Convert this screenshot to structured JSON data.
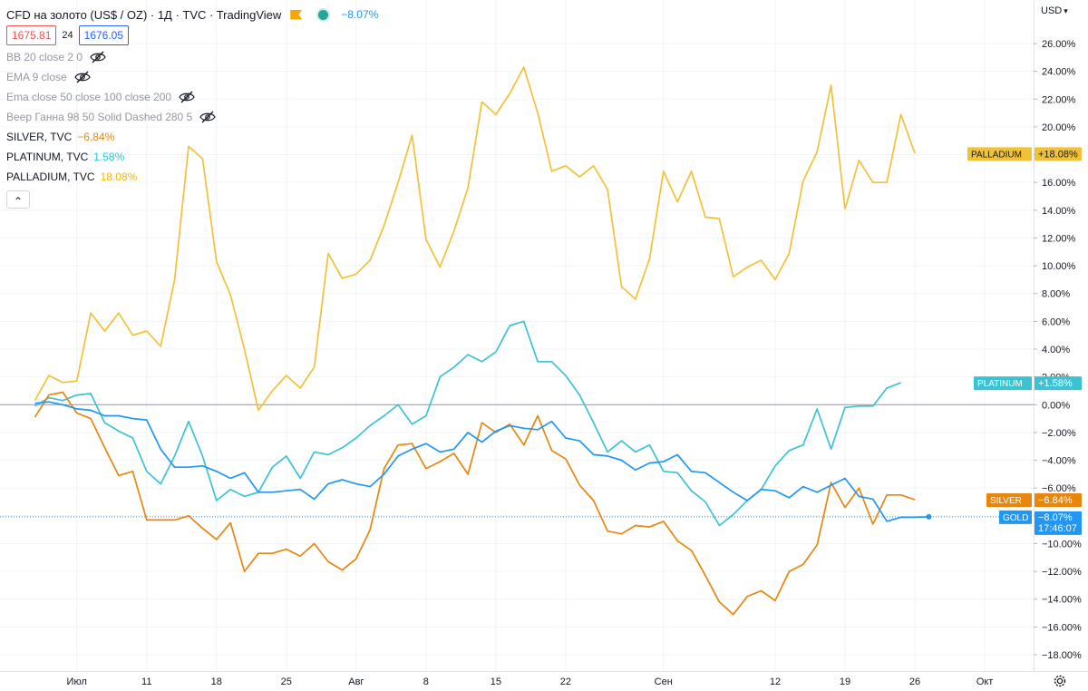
{
  "header": {
    "title": "CFD на золото (US$ / OZ) · 1Д · TVC · TradingView",
    "change": "−8.07%",
    "bid": "1675.81",
    "spread": "24",
    "ask": "1676.05",
    "currency": "USD",
    "currency_caret": "▾",
    "collapse_glyph": "⌃"
  },
  "indicators": [
    {
      "label": "BB 20 close 2 0"
    },
    {
      "label": "EMA 9 close"
    },
    {
      "label": "Ema close 50 close 100 close 200"
    },
    {
      "label": "Веер Ганна 98 50 Solid Dashed 280 5"
    }
  ],
  "series_legend": [
    {
      "name": "SILVER, TVC",
      "value": "−6.84%",
      "color": "#e8860d"
    },
    {
      "name": "PLATINUM, TVC",
      "value": "1.58%",
      "color": "#26c6da"
    },
    {
      "name": "PALLADIUM, TVC",
      "value": "18.08%",
      "color": "#f0b90b"
    }
  ],
  "colors": {
    "gold": "#2196f3",
    "silver": "#e8860d",
    "platinum": "#3bc3d4",
    "palladium": "#f2c236",
    "zero_line": "#9598a1",
    "grid": "#f0f3fa"
  },
  "chart_data": {
    "type": "line",
    "y_unit": "%",
    "ylim": [
      -19,
      27
    ],
    "y_ticks": [
      "26.00%",
      "24.00%",
      "22.00%",
      "20.00%",
      "18.00%",
      "16.00%",
      "14.00%",
      "12.00%",
      "10.00%",
      "8.00%",
      "6.00%",
      "4.00%",
      "2.00%",
      "0.00%",
      "−2.00%",
      "−4.00%",
      "−6.00%",
      "−8.00%",
      "−10.00%",
      "−12.00%",
      "−14.00%",
      "−16.00%",
      "−18.00%"
    ],
    "x_ticks": [
      {
        "label": "Июл",
        "index": 3
      },
      {
        "label": "11",
        "index": 8
      },
      {
        "label": "18",
        "index": 13
      },
      {
        "label": "25",
        "index": 18
      },
      {
        "label": "Авг",
        "index": 23
      },
      {
        "label": "8",
        "index": 28
      },
      {
        "label": "15",
        "index": 33
      },
      {
        "label": "22",
        "index": 38
      },
      {
        "label": "Сен",
        "index": 45
      },
      {
        "label": "12",
        "index": 53
      },
      {
        "label": "19",
        "index": 58
      },
      {
        "label": "26",
        "index": 63
      },
      {
        "label": "Окт",
        "index": 68
      }
    ],
    "x_index_range": [
      -2.5,
      71.5
    ],
    "series": [
      {
        "key": "palladium",
        "label": "PALLADIUM",
        "badge": "+18.08%",
        "values": [
          0.3,
          2.1,
          1.6,
          1.7,
          6.6,
          5.3,
          6.6,
          5.0,
          5.3,
          4.2,
          9.0,
          18.6,
          17.7,
          10.3,
          7.9,
          4.0,
          -0.4,
          1.0,
          2.1,
          1.2,
          2.7,
          10.9,
          9.1,
          9.4,
          10.4,
          12.9,
          16.0,
          19.4,
          11.9,
          9.9,
          12.5,
          15.6,
          21.8,
          20.9,
          22.4,
          24.3,
          21.0,
          16.8,
          17.2,
          16.4,
          17.2,
          15.5,
          8.5,
          7.6,
          10.5,
          16.8,
          14.6,
          16.8,
          13.5,
          13.4,
          9.2,
          9.9,
          10.4,
          9.0,
          10.9,
          16.1,
          18.2,
          23.0,
          14.1,
          17.6,
          16.0,
          16.0,
          20.9,
          18.08
        ]
      },
      {
        "key": "platinum",
        "label": "PLATINUM",
        "badge": "+1.58%",
        "values": [
          -0.1,
          0.5,
          0.3,
          0.7,
          0.8,
          -1.3,
          -1.9,
          -2.4,
          -4.8,
          -5.7,
          -3.7,
          -1.2,
          -3.7,
          -6.9,
          -6.1,
          -6.6,
          -6.3,
          -4.5,
          -3.7,
          -5.3,
          -3.4,
          -3.6,
          -3.1,
          -2.4,
          -1.5,
          -0.8,
          0.0,
          -1.4,
          -0.8,
          2.0,
          2.7,
          3.6,
          3.1,
          3.8,
          5.7,
          6.0,
          3.1,
          3.1,
          2.1,
          0.7,
          -1.3,
          -3.4,
          -2.6,
          -3.4,
          -2.9,
          -4.8,
          -4.9,
          -6.2,
          -7.0,
          -8.7,
          -7.9,
          -6.9,
          -6.1,
          -4.4,
          -3.3,
          -2.9,
          -0.3,
          -3.2,
          -0.2,
          -0.1,
          -0.1,
          1.2,
          1.58
        ]
      },
      {
        "key": "silver",
        "label": "SILVER",
        "badge": "−6.84%",
        "values": [
          -0.9,
          0.7,
          0.9,
          -0.6,
          -1.0,
          -3.1,
          -5.1,
          -4.8,
          -8.3,
          -8.3,
          -8.3,
          -8.0,
          -8.9,
          -9.7,
          -8.5,
          -12.0,
          -10.7,
          -10.7,
          -10.4,
          -10.9,
          -10.0,
          -11.3,
          -11.9,
          -11.1,
          -9.0,
          -4.6,
          -2.9,
          -2.8,
          -4.6,
          -4.1,
          -3.5,
          -5.0,
          -1.3,
          -2.0,
          -1.4,
          -2.9,
          -0.8,
          -3.3,
          -3.9,
          -5.8,
          -6.9,
          -9.1,
          -9.3,
          -8.7,
          -8.8,
          -8.4,
          -9.8,
          -10.5,
          -12.3,
          -14.2,
          -15.1,
          -13.8,
          -13.4,
          -14.1,
          -12.0,
          -11.5,
          -10.1,
          -5.6,
          -7.4,
          -6.0,
          -8.6,
          -6.5,
          -6.5,
          -6.84
        ]
      },
      {
        "key": "gold",
        "label": "GOLD",
        "badge": "−8.07%",
        "time": "17:46:07",
        "values": [
          0.1,
          0.2,
          0.0,
          -0.3,
          -0.4,
          -0.8,
          -0.8,
          -1.0,
          -1.1,
          -3.2,
          -4.5,
          -4.5,
          -4.4,
          -4.8,
          -5.3,
          -4.9,
          -6.3,
          -6.3,
          -6.2,
          -6.1,
          -6.8,
          -5.7,
          -5.4,
          -5.7,
          -5.9,
          -5.0,
          -3.7,
          -3.2,
          -2.8,
          -3.4,
          -3.2,
          -2.0,
          -2.7,
          -1.9,
          -1.5,
          -1.7,
          -1.8,
          -1.2,
          -2.4,
          -2.6,
          -3.6,
          -3.7,
          -4.0,
          -4.7,
          -4.2,
          -4.1,
          -3.6,
          -4.8,
          -4.9,
          -5.6,
          -6.3,
          -6.9,
          -6.1,
          -6.2,
          -6.7,
          -5.9,
          -6.3,
          -5.8,
          -5.3,
          -6.6,
          -6.8,
          -8.4,
          -8.1,
          -8.1,
          -8.07
        ]
      }
    ]
  }
}
